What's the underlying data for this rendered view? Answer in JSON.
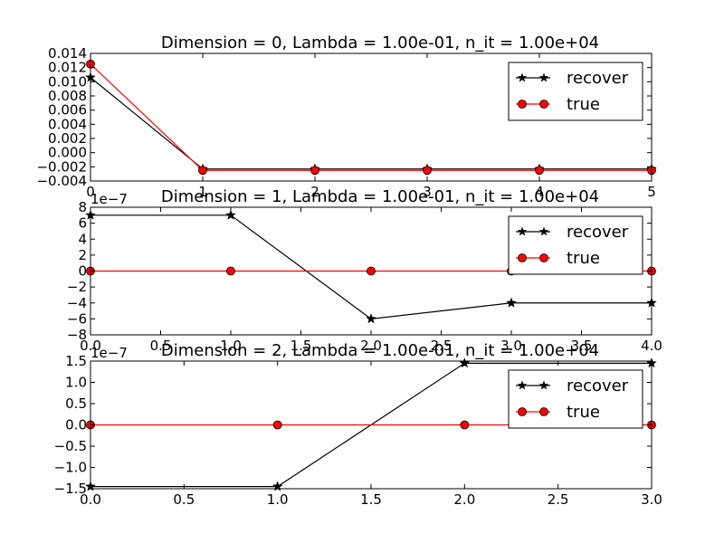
{
  "colors": {
    "recover": "#000000",
    "true": "#ff0000",
    "marker_true_fill": "#ff0000"
  },
  "chart_data": [
    {
      "type": "line",
      "title": "Dimension = 0, Lambda = 1.00e-01, n_it = 1.00e+04",
      "xlim": [
        0,
        5
      ],
      "ylim": [
        -0.004,
        0.014
      ],
      "xticks": [
        0,
        1,
        2,
        3,
        4,
        5
      ],
      "xtick_labels": [
        "0",
        "1",
        "2",
        "3",
        "4",
        "5"
      ],
      "yticks": [
        -0.004,
        -0.002,
        0.0,
        0.002,
        0.004,
        0.006,
        0.008,
        0.01,
        0.012,
        0.014
      ],
      "ytick_labels": [
        "−0.004",
        "−0.002",
        "0.000",
        "0.002",
        "0.004",
        "0.006",
        "0.008",
        "0.010",
        "0.012",
        "0.014"
      ],
      "offset_text": "",
      "legend_position": "top-right",
      "series": [
        {
          "name": "recover",
          "marker": "star",
          "x": [
            0,
            1,
            2,
            3,
            4,
            5
          ],
          "y": [
            0.0106,
            -0.0023,
            -0.0023,
            -0.0023,
            -0.0023,
            -0.0023
          ]
        },
        {
          "name": "true",
          "marker": "circle",
          "x": [
            0,
            1,
            2,
            3,
            4,
            5
          ],
          "y": [
            0.0125,
            -0.0025,
            -0.0025,
            -0.0025,
            -0.0025,
            -0.0025
          ]
        }
      ]
    },
    {
      "type": "line",
      "title": "Dimension = 1, Lambda = 1.00e-01, n_it = 1.00e+04",
      "xlim": [
        0,
        4
      ],
      "ylim": [
        -8,
        8
      ],
      "xticks": [
        0,
        0.5,
        1,
        1.5,
        2,
        2.5,
        3,
        3.5,
        4
      ],
      "xtick_labels": [
        "0.0",
        "0.5",
        "1.0",
        "1.5",
        "2.0",
        "2.5",
        "3.0",
        "3.5",
        "4.0"
      ],
      "yticks": [
        -8,
        -6,
        -4,
        -2,
        0,
        2,
        4,
        6,
        8
      ],
      "ytick_labels": [
        "−8",
        "−6",
        "−4",
        "−2",
        "0",
        "2",
        "4",
        "6",
        "8"
      ],
      "offset_text": "1e−7",
      "legend_position": "top-right",
      "series": [
        {
          "name": "recover",
          "marker": "star",
          "x": [
            0,
            1,
            2,
            3,
            4
          ],
          "y": [
            7,
            7,
            -6,
            -4,
            -4
          ]
        },
        {
          "name": "true",
          "marker": "circle",
          "x": [
            0,
            1,
            2,
            3,
            4
          ],
          "y": [
            0,
            0,
            0,
            0,
            0
          ]
        }
      ]
    },
    {
      "type": "line",
      "title": "Dimension = 2, Lambda = 1.00e-01, n_it = 1.00e+04",
      "xlim": [
        0,
        3
      ],
      "ylim": [
        -1.5,
        1.5
      ],
      "xticks": [
        0,
        0.5,
        1,
        1.5,
        2,
        2.5,
        3
      ],
      "xtick_labels": [
        "0.0",
        "0.5",
        "1.0",
        "1.5",
        "2.0",
        "2.5",
        "3.0"
      ],
      "yticks": [
        -1.5,
        -1.0,
        -0.5,
        0.0,
        0.5,
        1.0,
        1.5
      ],
      "ytick_labels": [
        "−1.5",
        "−1.0",
        "−0.5",
        "0.0",
        "0.5",
        "1.0",
        "1.5"
      ],
      "offset_text": "1e−7",
      "legend_position": "top-right",
      "series": [
        {
          "name": "recover",
          "marker": "star",
          "x": [
            0,
            1,
            2,
            3
          ],
          "y": [
            -1.45,
            -1.45,
            1.45,
            1.45
          ]
        },
        {
          "name": "true",
          "marker": "circle",
          "x": [
            0,
            1,
            2,
            3
          ],
          "y": [
            0,
            0,
            0,
            0
          ]
        }
      ]
    }
  ]
}
